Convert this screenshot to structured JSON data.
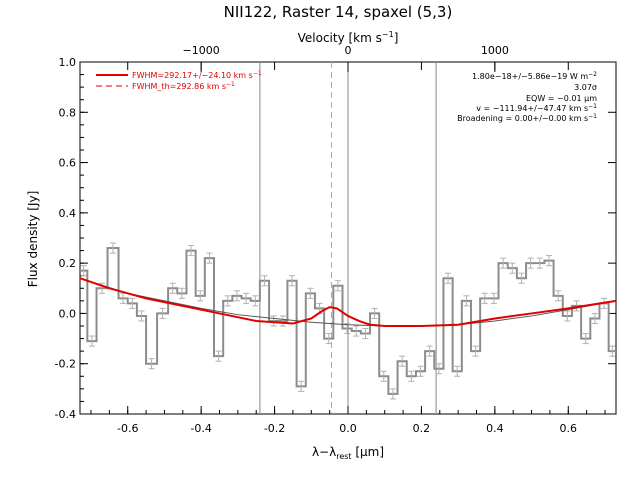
{
  "chart_data": {
    "type": "line",
    "title": "NII122, Raster 14, spaxel (5,3)",
    "xlabel_main": "λ−λ",
    "xlabel_sub": "rest",
    "xlabel_unit": " [μm]",
    "ylabel": "Flux density [Jy]",
    "top_axis_label": "Velocity [km s",
    "top_axis_label_sup": "−1",
    "top_axis_label_end": "]",
    "xlim": [
      -0.73,
      0.73
    ],
    "ylim": [
      -0.4,
      1.0
    ],
    "x_ticks": [
      "-0.6",
      "-0.4",
      "-0.2",
      "0.0",
      "0.2",
      "0.4",
      "0.6"
    ],
    "x_tick_values": [
      -0.6,
      -0.4,
      -0.2,
      0.0,
      0.2,
      0.4,
      0.6
    ],
    "y_ticks": [
      "1.0",
      "0.8",
      "0.6",
      "0.4",
      "0.2",
      "0.0",
      "-0.2",
      "-0.4"
    ],
    "y_tick_values": [
      1.0,
      0.8,
      0.6,
      0.4,
      0.2,
      0.0,
      -0.2,
      -0.4
    ],
    "top_ticks": [
      "−1000",
      "0",
      "1000"
    ],
    "top_tick_values": [
      -0.4,
      0.0,
      0.4
    ],
    "vertical_lines": [
      -0.24,
      0.0,
      0.24
    ],
    "dashed_vertical_line": -0.045,
    "legend": [
      {
        "label": "FWHM=292.17+/−24.10 km s",
        "sup": "−1",
        "style": "solid"
      },
      {
        "label": "FWHM_th=292.86 km s",
        "sup": "−1",
        "style": "dashed"
      }
    ],
    "annotations": [
      {
        "text": "1.80e−18+/−5.86e−19 W m",
        "sup": "−2"
      },
      {
        "text": "3.07σ",
        "sup": ""
      },
      {
        "text": "EQW = −0.01 μm",
        "sup": ""
      },
      {
        "text": "v = −111.94+/−47.47 km s",
        "sup": "−1"
      },
      {
        "text": "Broadening = 0.00+/−0.00 km s",
        "sup": "−1"
      }
    ],
    "series": [
      {
        "name": "spectrum",
        "x": [
          -0.73,
          -0.71,
          -0.685,
          -0.655,
          -0.625,
          -0.6,
          -0.575,
          -0.55,
          -0.52,
          -0.49,
          -0.465,
          -0.44,
          -0.415,
          -0.39,
          -0.365,
          -0.34,
          -0.315,
          -0.29,
          -0.265,
          -0.24,
          -0.215,
          -0.19,
          -0.165,
          -0.14,
          -0.115,
          -0.09,
          -0.065,
          -0.04,
          -0.015,
          0.01,
          0.035,
          0.06,
          0.085,
          0.11,
          0.135,
          0.16,
          0.185,
          0.21,
          0.235,
          0.26,
          0.285,
          0.31,
          0.335,
          0.36,
          0.385,
          0.41,
          0.435,
          0.46,
          0.485,
          0.51,
          0.535,
          0.56,
          0.585,
          0.61,
          0.635,
          0.66,
          0.685,
          0.71
        ],
        "y": [
          0.17,
          -0.11,
          0.1,
          0.26,
          0.06,
          0.04,
          -0.01,
          -0.2,
          0.0,
          0.1,
          0.08,
          0.25,
          0.07,
          0.22,
          -0.17,
          0.05,
          0.07,
          0.06,
          0.05,
          0.13,
          -0.03,
          -0.03,
          0.13,
          -0.29,
          0.08,
          0.02,
          -0.1,
          0.11,
          -0.06,
          -0.07,
          -0.08,
          0.0,
          -0.25,
          -0.32,
          -0.19,
          -0.25,
          -0.23,
          -0.15,
          -0.22,
          0.14,
          -0.23,
          0.05,
          -0.15,
          0.06,
          0.06,
          0.2,
          0.18,
          0.14,
          0.2,
          0.2,
          0.21,
          0.07,
          -0.01,
          0.03,
          -0.1,
          -0.02,
          0.04,
          -0.15
        ],
        "error": 0.02
      },
      {
        "name": "fit",
        "x": [
          -0.73,
          -0.65,
          -0.55,
          -0.45,
          -0.35,
          -0.25,
          -0.15,
          -0.1,
          -0.07,
          -0.05,
          -0.03,
          0.0,
          0.03,
          0.06,
          0.1,
          0.2,
          0.3,
          0.4,
          0.5,
          0.6,
          0.73
        ],
        "y": [
          0.14,
          0.1,
          0.06,
          0.03,
          0.0,
          -0.03,
          -0.04,
          -0.02,
          0.01,
          0.025,
          0.02,
          -0.01,
          -0.03,
          -0.045,
          -0.05,
          -0.05,
          -0.045,
          -0.02,
          0.0,
          0.02,
          0.05
        ]
      },
      {
        "name": "continuum",
        "x": [
          -0.73,
          -0.6,
          -0.5,
          -0.4,
          -0.3,
          -0.2,
          -0.1,
          0.0,
          0.1,
          0.2,
          0.3,
          0.4,
          0.5,
          0.6,
          0.73
        ],
        "y": [
          0.14,
          0.08,
          0.05,
          0.02,
          -0.005,
          -0.02,
          -0.035,
          -0.045,
          -0.05,
          -0.05,
          -0.045,
          -0.03,
          -0.01,
          0.015,
          0.05
        ]
      }
    ],
    "colors": {
      "spectrum": "#8c8c8c",
      "fit": "#e00000",
      "axes": "#000000",
      "vlines": "#888888"
    }
  }
}
